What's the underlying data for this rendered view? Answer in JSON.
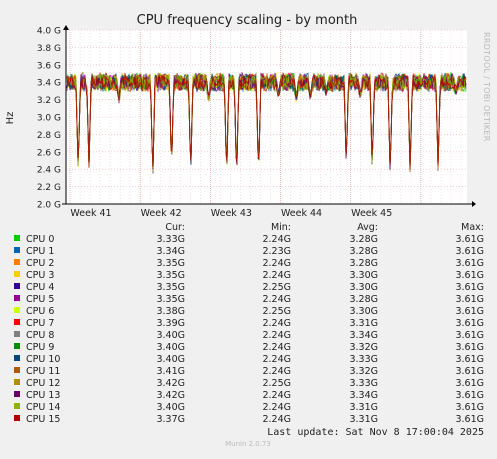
{
  "chart_data": {
    "type": "line",
    "title": "CPU frequency scaling - by month",
    "ylabel": "Hz",
    "watermark": "RRDTOOL / TOBI OETIKER",
    "yticks": [
      "2.0 G",
      "2.2 G",
      "2.4 G",
      "2.6 G",
      "2.8 G",
      "3.0 G",
      "3.2 G",
      "3.4 G",
      "3.6 G",
      "3.8 G",
      "4.0 G"
    ],
    "ylim": [
      2.0,
      4.0
    ],
    "xticks": [
      "Week 41",
      "Week 42",
      "Week 43",
      "Week 44",
      "Week 45"
    ],
    "grid": true,
    "baseline": 3.4,
    "dips": [
      [
        0.028,
        2.4
      ],
      [
        0.055,
        2.45
      ],
      [
        0.13,
        3.2
      ],
      [
        0.215,
        2.3
      ],
      [
        0.262,
        2.4
      ],
      [
        0.31,
        2.35
      ],
      [
        0.355,
        3.2
      ],
      [
        0.4,
        2.3
      ],
      [
        0.425,
        2.28
      ],
      [
        0.48,
        2.3
      ],
      [
        0.53,
        3.25
      ],
      [
        0.575,
        3.2
      ],
      [
        0.61,
        3.22
      ],
      [
        0.65,
        3.28
      ],
      [
        0.7,
        2.45
      ],
      [
        0.735,
        3.25
      ],
      [
        0.765,
        2.4
      ],
      [
        0.81,
        2.35
      ],
      [
        0.86,
        2.35
      ],
      [
        0.93,
        2.4
      ],
      [
        0.975,
        3.3
      ]
    ],
    "columns": [
      "Cur:",
      "Min:",
      "Avg:",
      "Max:"
    ],
    "series": [
      {
        "name": "CPU 0",
        "color": "#00cc00",
        "cur": "3.33G",
        "min": "2.24G",
        "avg": "3.28G",
        "max": "3.61G"
      },
      {
        "name": "CPU 1",
        "color": "#0066b3",
        "cur": "3.34G",
        "min": "2.23G",
        "avg": "3.28G",
        "max": "3.61G"
      },
      {
        "name": "CPU 2",
        "color": "#ff8000",
        "cur": "3.35G",
        "min": "2.24G",
        "avg": "3.28G",
        "max": "3.61G"
      },
      {
        "name": "CPU 3",
        "color": "#ffcc00",
        "cur": "3.35G",
        "min": "2.24G",
        "avg": "3.30G",
        "max": "3.61G"
      },
      {
        "name": "CPU 4",
        "color": "#330099",
        "cur": "3.35G",
        "min": "2.25G",
        "avg": "3.30G",
        "max": "3.61G"
      },
      {
        "name": "CPU 5",
        "color": "#990099",
        "cur": "3.35G",
        "min": "2.24G",
        "avg": "3.28G",
        "max": "3.61G"
      },
      {
        "name": "CPU 6",
        "color": "#ccff00",
        "cur": "3.38G",
        "min": "2.25G",
        "avg": "3.30G",
        "max": "3.61G"
      },
      {
        "name": "CPU 7",
        "color": "#ff0000",
        "cur": "3.39G",
        "min": "2.24G",
        "avg": "3.31G",
        "max": "3.61G"
      },
      {
        "name": "CPU 8",
        "color": "#808080",
        "cur": "3.40G",
        "min": "2.24G",
        "avg": "3.34G",
        "max": "3.61G"
      },
      {
        "name": "CPU 9",
        "color": "#008f00",
        "cur": "3.40G",
        "min": "2.24G",
        "avg": "3.32G",
        "max": "3.61G"
      },
      {
        "name": "CPU 10",
        "color": "#00487d",
        "cur": "3.40G",
        "min": "2.24G",
        "avg": "3.33G",
        "max": "3.61G"
      },
      {
        "name": "CPU 11",
        "color": "#b35a00",
        "cur": "3.41G",
        "min": "2.24G",
        "avg": "3.32G",
        "max": "3.61G"
      },
      {
        "name": "CPU 12",
        "color": "#b38f00",
        "cur": "3.42G",
        "min": "2.25G",
        "avg": "3.33G",
        "max": "3.61G"
      },
      {
        "name": "CPU 13",
        "color": "#6b006b",
        "cur": "3.42G",
        "min": "2.24G",
        "avg": "3.34G",
        "max": "3.61G"
      },
      {
        "name": "CPU 14",
        "color": "#8fb300",
        "cur": "3.40G",
        "min": "2.24G",
        "avg": "3.31G",
        "max": "3.61G"
      },
      {
        "name": "CPU 15",
        "color": "#b30000",
        "cur": "3.37G",
        "min": "2.24G",
        "avg": "3.31G",
        "max": "3.61G"
      }
    ]
  },
  "footer": {
    "last_update": "Last update: Sat Nov  8 17:00:04 2025",
    "generator": "Munin 2.0.73"
  }
}
